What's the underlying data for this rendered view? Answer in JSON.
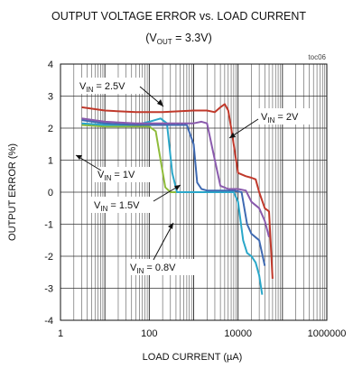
{
  "chart_data": {
    "type": "line",
    "title": "OUTPUT VOLTAGE ERROR vs. LOAD CURRENT",
    "subtitle": {
      "prefix": "(V",
      "sub": "OUT",
      "suffix": " = 3.3V)"
    },
    "tag": "toc06",
    "xlabel": "LOAD CURRENT (µA)",
    "ylabel": "OUTPUT ERROR (%)",
    "xscale": "log",
    "xlim": [
      1,
      1000000
    ],
    "ylim": [
      -4,
      4
    ],
    "xticks": [
      {
        "v": 1,
        "label": "1"
      },
      {
        "v": 100,
        "label": "100"
      },
      {
        "v": 10000,
        "label": "10000"
      },
      {
        "v": 1000000,
        "label": "1000000"
      }
    ],
    "yticks": [
      {
        "v": 4,
        "label": "4"
      },
      {
        "v": 3,
        "label": "3"
      },
      {
        "v": 2,
        "label": "2"
      },
      {
        "v": 1,
        "label": "1"
      },
      {
        "v": 0,
        "label": "0"
      },
      {
        "v": -1,
        "label": "-1"
      },
      {
        "v": -2,
        "label": "-2"
      },
      {
        "v": -3,
        "label": "-3"
      },
      {
        "v": -4,
        "label": "-4"
      }
    ],
    "grid": true,
    "series": [
      {
        "name": "VIN = 0.8V",
        "color": "#8fbc3a",
        "x": [
          3,
          10,
          50,
          100,
          140,
          180,
          230,
          300,
          600,
          1000,
          2000,
          3000
        ],
        "y": [
          2.1,
          2.05,
          2.05,
          2.05,
          1.9,
          1.0,
          0.15,
          0.0,
          0.0,
          0.0,
          0.0,
          0.0
        ]
      },
      {
        "name": "VIN = 1.5V",
        "color": "#2aa7c9",
        "x": [
          3,
          10,
          50,
          100,
          180,
          250,
          330,
          420,
          600,
          1000,
          2000,
          4000,
          6000,
          8000,
          10000,
          13000,
          16000,
          20000,
          25000,
          30000,
          35000
        ],
        "y": [
          2.15,
          2.1,
          2.1,
          2.2,
          2.3,
          2.15,
          0.6,
          0.0,
          0.0,
          0.0,
          0.0,
          0.0,
          0.0,
          0.0,
          -0.3,
          -1.5,
          -1.9,
          -2.0,
          -2.2,
          -2.6,
          -3.2
        ]
      },
      {
        "name": "VIN = 1V",
        "color": "#3f6ab2",
        "x": [
          3,
          10,
          50,
          100,
          300,
          700,
          1000,
          1200,
          1500,
          2000,
          4000,
          8000,
          12000,
          16000,
          20000,
          30000,
          40000
        ],
        "y": [
          2.25,
          2.15,
          2.1,
          2.1,
          2.1,
          2.1,
          1.5,
          0.3,
          0.1,
          0.05,
          0.05,
          0.05,
          0.0,
          -1.0,
          -1.3,
          -1.5,
          -2.3
        ]
      },
      {
        "name": "VIN = 2V",
        "color": "#8a5aad",
        "x": [
          3,
          10,
          50,
          200,
          1000,
          1500,
          2000,
          3000,
          4000,
          6000,
          10000,
          15000,
          20000,
          30000,
          40000,
          50000
        ],
        "y": [
          2.3,
          2.2,
          2.15,
          2.15,
          2.15,
          2.2,
          2.15,
          1.0,
          0.2,
          0.1,
          0.1,
          0.05,
          -0.3,
          -0.5,
          -0.9,
          -1.4
        ]
      },
      {
        "name": "VIN = 2.5V",
        "color": "#c0392b",
        "x": [
          3,
          10,
          50,
          200,
          1000,
          2000,
          3000,
          4000,
          5000,
          6000,
          7000,
          10000,
          15000,
          20000,
          25000,
          30000,
          40000,
          50000,
          60000
        ],
        "y": [
          2.65,
          2.55,
          2.5,
          2.5,
          2.55,
          2.55,
          2.5,
          2.65,
          2.75,
          2.55,
          2.0,
          0.6,
          0.5,
          0.45,
          0.4,
          0.0,
          -0.5,
          -0.6,
          -2.7
        ]
      }
    ],
    "annotations": [
      {
        "prefix": "V",
        "sub": "IN",
        "suffix": " = 2.5V"
      },
      {
        "prefix": "V",
        "sub": "IN",
        "suffix": " = 2V"
      },
      {
        "prefix": "V",
        "sub": "IN",
        "suffix": " = 1V"
      },
      {
        "prefix": "V",
        "sub": "IN",
        "suffix": " = 1.5V"
      },
      {
        "prefix": "V",
        "sub": "IN",
        "suffix": " = 0.8V"
      }
    ]
  }
}
